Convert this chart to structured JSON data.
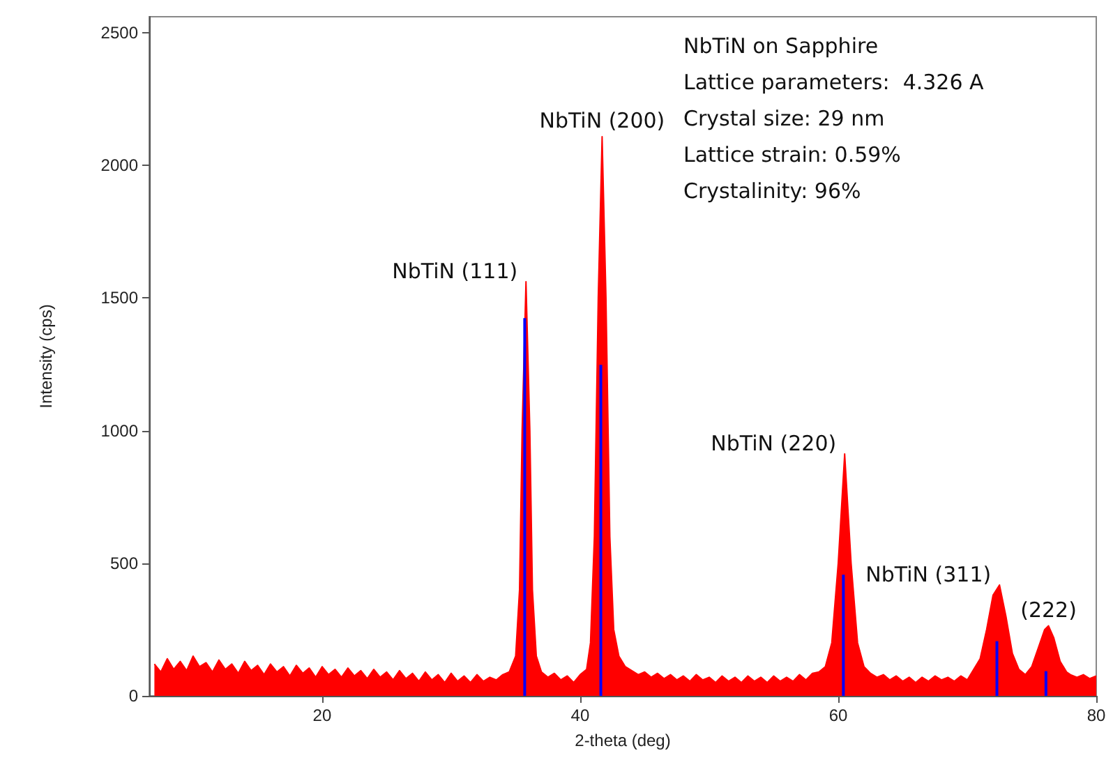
{
  "chart_data": {
    "type": "area",
    "xlabel": "2-theta (deg)",
    "ylabel": "Intensity (cps)",
    "xlim": [
      6.6,
      80
    ],
    "xticks": [
      20,
      40,
      60,
      80
    ],
    "ylim": [
      0,
      2560
    ],
    "yticks": [
      0,
      500,
      1000,
      1500,
      2000,
      2500
    ],
    "annotations": [
      "NbTiN on Sapphire",
      "Lattice parameters:  4.326 A",
      "Crystal size: 29 nm",
      "Lattice strain: 0.59%",
      "Crystalinity: 96%",
      {
        "text": "NbTiN (111)",
        "x": 35.8,
        "y": 1561
      },
      {
        "text": "NbTiN (200)",
        "x": 41.7,
        "y": 2108
      },
      {
        "text": "NbTiN (220)",
        "x": 60.5,
        "y": 912
      },
      {
        "text": "NbTiN (311)",
        "x": 72.5,
        "y": 418
      },
      {
        "text": "(222)",
        "x": 76.3,
        "y": 264
      }
    ],
    "series": [
      {
        "color": "#ff0000",
        "x": [
          7,
          7.5,
          8,
          8.5,
          9,
          9.5,
          10,
          10.5,
          11,
          11.5,
          12,
          12.5,
          13,
          13.5,
          14,
          14.5,
          15,
          15.5,
          16,
          16.5,
          17,
          17.5,
          18,
          18.5,
          19,
          19.5,
          20,
          20.5,
          21,
          21.5,
          22,
          22.5,
          23,
          23.5,
          24,
          24.5,
          25,
          25.5,
          26,
          26.5,
          27,
          27.5,
          28,
          28.5,
          29,
          29.5,
          30,
          30.5,
          31,
          31.5,
          32,
          32.5,
          33,
          33.5,
          34,
          34.5,
          35,
          35.3,
          35.5,
          35.8,
          36.1,
          36.3,
          36.6,
          37,
          37.5,
          38,
          38.5,
          39,
          39.5,
          40,
          40.5,
          40.8,
          41.1,
          41.4,
          41.7,
          42,
          42.3,
          42.6,
          43,
          43.5,
          44,
          44.5,
          45,
          45.5,
          46,
          46.5,
          47,
          47.5,
          48,
          48.5,
          49,
          49.5,
          50,
          50.5,
          51,
          51.5,
          52,
          52.5,
          53,
          53.5,
          54,
          54.5,
          55,
          55.5,
          56,
          56.5,
          57,
          57.5,
          58,
          58.5,
          59,
          59.5,
          60,
          60.5,
          61,
          61.5,
          62,
          62.5,
          63,
          63.5,
          64,
          64.5,
          65,
          65.5,
          66,
          66.5,
          67,
          67.5,
          68,
          68.5,
          69,
          69.5,
          70,
          70.5,
          71,
          71.5,
          72,
          72.5,
          73,
          73.5,
          74,
          74.5,
          75,
          75.5,
          76,
          76.3,
          76.7,
          77.2,
          77.7,
          78,
          78.5,
          79,
          79.5,
          80
        ],
        "values": [
          120,
          90,
          140,
          100,
          130,
          95,
          150,
          110,
          125,
          90,
          135,
          100,
          120,
          85,
          130,
          95,
          115,
          80,
          120,
          90,
          110,
          75,
          115,
          85,
          105,
          70,
          110,
          80,
          100,
          70,
          105,
          75,
          95,
          65,
          100,
          70,
          90,
          60,
          95,
          65,
          85,
          55,
          90,
          60,
          80,
          50,
          85,
          55,
          75,
          50,
          80,
          55,
          70,
          60,
          80,
          90,
          150,
          400,
          1000,
          1561,
          1000,
          400,
          150,
          90,
          70,
          85,
          60,
          75,
          50,
          80,
          100,
          200,
          600,
          1500,
          2108,
          1500,
          600,
          250,
          150,
          110,
          95,
          80,
          90,
          70,
          85,
          65,
          80,
          60,
          75,
          55,
          80,
          60,
          70,
          50,
          75,
          55,
          70,
          50,
          75,
          55,
          70,
          50,
          75,
          55,
          70,
          55,
          80,
          60,
          85,
          90,
          110,
          200,
          500,
          912,
          500,
          200,
          110,
          85,
          70,
          80,
          60,
          75,
          55,
          70,
          50,
          70,
          55,
          75,
          60,
          70,
          55,
          75,
          60,
          100,
          140,
          250,
          380,
          418,
          300,
          160,
          100,
          80,
          110,
          180,
          250,
          264,
          220,
          130,
          90,
          80,
          70,
          80,
          65,
          75
        ]
      },
      {
        "type": "bar",
        "color": "#0000ff",
        "x": [
          35.7,
          41.6,
          60.4,
          72.3,
          76.1
        ],
        "values": [
          1424,
          1248,
          457,
          206,
          93
        ]
      }
    ]
  }
}
